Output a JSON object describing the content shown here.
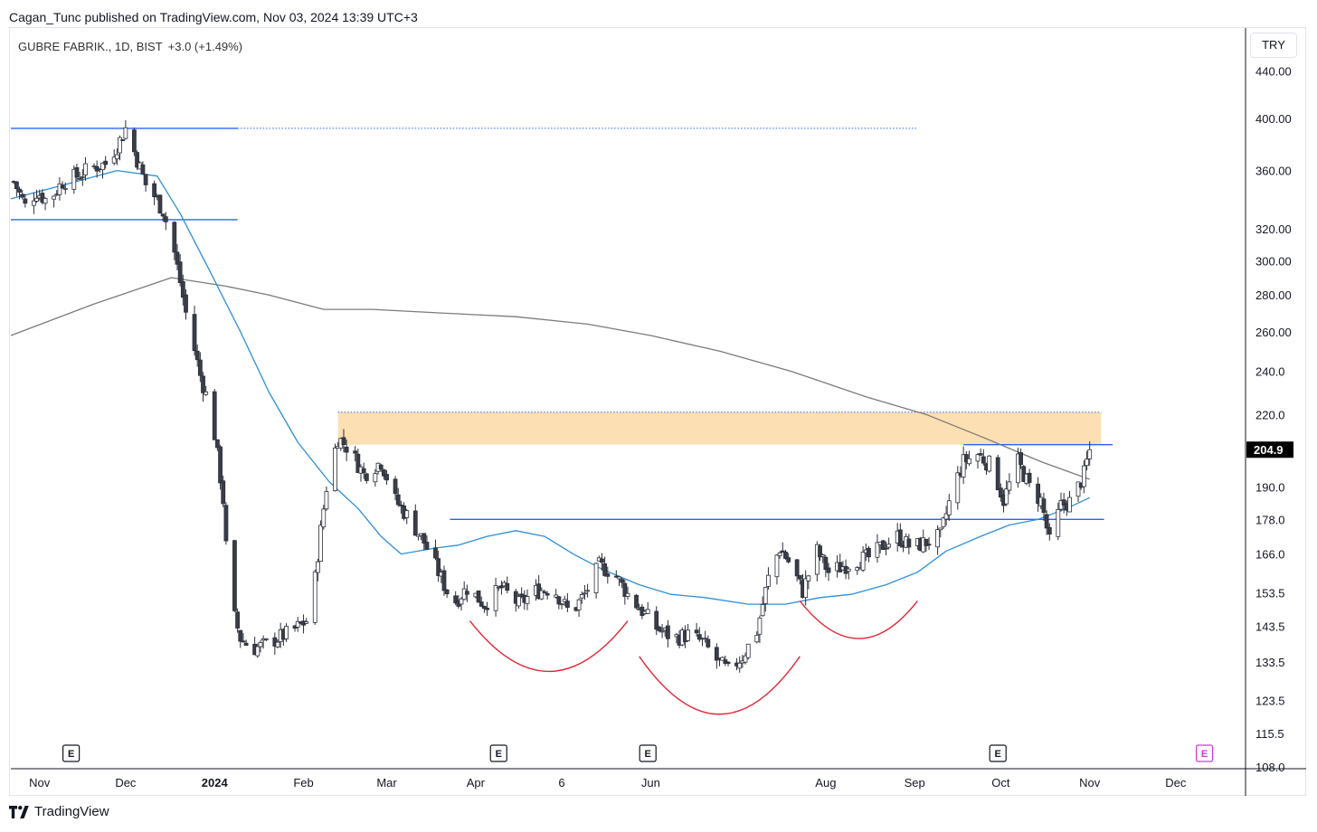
{
  "header": {
    "publish_line": "Cagan_Tunc published on TradingView.com, Nov 03, 2024 13:39 UTC+3"
  },
  "legend": {
    "symbol": "GUBRE FABRIK., 1D, BIST",
    "change": "+3.0 (+1.49%)"
  },
  "currency": "TRY",
  "brand": {
    "name": "TradingView"
  },
  "colors": {
    "up_candle_fill": "#ffffff",
    "down_candle_fill": "#3a3d46",
    "wick": "#2a2e39",
    "ma_fast": "#2f8fd8",
    "ma_slow": "#7b7b7b",
    "levels": "#2962ff",
    "resistance_zone": "#fbd9a4",
    "arcs": "#e32636",
    "last_price_bg": "#000000",
    "future_earnings": "#d633d6"
  },
  "chart_data": {
    "type": "candlestick",
    "symbol": "GUBRE FABRIK.",
    "interval": "1D",
    "exchange": "BIST",
    "last_price": 204.9,
    "last_price_label": "204.9",
    "scale": "log",
    "ylim": [
      108,
      480
    ],
    "y_ticks": [
      "440.00",
      "400.00",
      "360.00",
      "320.00",
      "300.00",
      "280.00",
      "260.00",
      "240.0",
      "220.0",
      "190.0",
      "178.0",
      "166.0",
      "153.5",
      "143.5",
      "133.5",
      "123.5",
      "115.5",
      "108.0"
    ],
    "x_ticks": [
      "Nov",
      "Dec",
      "2024",
      "Feb",
      "Mar",
      "Apr",
      "6",
      "Jun",
      "Aug",
      "Sep",
      "Oct",
      "Nov",
      "Dec"
    ],
    "x_range": [
      "2023-10-22",
      "2024-12-25"
    ],
    "price_anchors": [
      [
        "2023-10-23",
        352
      ],
      [
        "2023-10-27",
        335
      ],
      [
        "2023-10-31",
        345
      ],
      [
        "2023-11-04",
        338
      ],
      [
        "2023-11-09",
        352
      ],
      [
        "2023-11-14",
        356
      ],
      [
        "2023-11-19",
        362
      ],
      [
        "2023-11-24",
        365
      ],
      [
        "2023-11-28",
        378
      ],
      [
        "2023-12-01",
        392
      ],
      [
        "2023-12-05",
        368
      ],
      [
        "2023-12-08",
        350
      ],
      [
        "2023-12-11",
        342
      ],
      [
        "2023-12-14",
        332
      ],
      [
        "2023-12-18",
        305
      ],
      [
        "2023-12-22",
        270
      ],
      [
        "2023-12-27",
        238
      ],
      [
        "2023-12-31",
        220
      ],
      [
        "2024-01-04",
        185
      ],
      [
        "2024-01-06",
        152
      ],
      [
        "2024-01-10",
        140
      ],
      [
        "2024-01-14",
        137
      ],
      [
        "2024-01-18",
        138
      ],
      [
        "2024-01-23",
        140
      ],
      [
        "2024-01-28",
        142
      ],
      [
        "2024-02-02",
        145
      ],
      [
        "2024-02-05",
        158
      ],
      [
        "2024-02-09",
        190
      ],
      [
        "2024-02-13",
        210
      ],
      [
        "2024-02-17",
        205
      ],
      [
        "2024-02-22",
        195
      ],
      [
        "2024-02-28",
        200
      ],
      [
        "2024-03-04",
        185
      ],
      [
        "2024-03-09",
        178
      ],
      [
        "2024-03-14",
        170
      ],
      [
        "2024-03-19",
        160
      ],
      [
        "2024-03-24",
        150
      ],
      [
        "2024-03-29",
        155
      ],
      [
        "2024-04-04",
        150
      ],
      [
        "2024-04-10",
        155
      ],
      [
        "2024-04-16",
        150
      ],
      [
        "2024-04-22",
        154
      ],
      [
        "2024-04-28",
        155
      ],
      [
        "2024-05-04",
        147
      ],
      [
        "2024-05-09",
        153
      ],
      [
        "2024-05-14",
        162
      ],
      [
        "2024-05-19",
        160
      ],
      [
        "2024-05-24",
        153
      ],
      [
        "2024-05-29",
        148
      ],
      [
        "2024-06-03",
        143
      ],
      [
        "2024-06-09",
        140
      ],
      [
        "2024-06-14",
        141
      ],
      [
        "2024-06-19",
        139
      ],
      [
        "2024-06-24",
        134
      ],
      [
        "2024-06-28",
        131
      ],
      [
        "2024-07-03",
        135
      ],
      [
        "2024-07-08",
        142
      ],
      [
        "2024-07-12",
        158
      ],
      [
        "2024-07-16",
        168
      ],
      [
        "2024-07-20",
        162
      ],
      [
        "2024-07-24",
        154
      ],
      [
        "2024-07-29",
        167
      ],
      [
        "2024-08-02",
        160
      ],
      [
        "2024-08-07",
        162
      ],
      [
        "2024-08-12",
        164
      ],
      [
        "2024-08-17",
        165
      ],
      [
        "2024-08-21",
        169
      ],
      [
        "2024-08-26",
        172
      ],
      [
        "2024-08-31",
        168
      ],
      [
        "2024-09-05",
        170
      ],
      [
        "2024-09-10",
        172
      ],
      [
        "2024-09-14",
        188
      ],
      [
        "2024-09-18",
        200
      ],
      [
        "2024-09-23",
        203
      ],
      [
        "2024-09-28",
        198
      ],
      [
        "2024-10-02",
        185
      ],
      [
        "2024-10-07",
        200
      ],
      [
        "2024-10-11",
        190
      ],
      [
        "2024-10-15",
        185
      ],
      [
        "2024-10-18",
        170
      ],
      [
        "2024-10-22",
        183
      ],
      [
        "2024-10-26",
        185
      ],
      [
        "2024-10-30",
        195
      ],
      [
        "2024-11-01",
        204.9
      ]
    ],
    "ma_fast": [
      [
        "2023-10-22",
        340
      ],
      [
        "2023-11-10",
        350
      ],
      [
        "2023-11-28",
        360
      ],
      [
        "2023-12-05",
        358
      ],
      [
        "2023-12-12",
        356
      ],
      [
        "2023-12-20",
        330
      ],
      [
        "2023-12-30",
        295
      ],
      [
        "2024-01-10",
        260
      ],
      [
        "2024-01-20",
        230
      ],
      [
        "2024-01-30",
        208
      ],
      [
        "2024-02-10",
        192
      ],
      [
        "2024-02-20",
        182
      ],
      [
        "2024-02-28",
        172
      ],
      [
        "2024-03-06",
        166
      ],
      [
        "2024-03-18",
        168
      ],
      [
        "2024-03-26",
        169
      ],
      [
        "2024-04-05",
        172
      ],
      [
        "2024-04-15",
        174
      ],
      [
        "2024-04-25",
        172
      ],
      [
        "2024-05-05",
        166
      ],
      [
        "2024-05-15",
        161
      ],
      [
        "2024-05-28",
        156
      ],
      [
        "2024-06-08",
        153
      ],
      [
        "2024-06-20",
        152
      ],
      [
        "2024-07-05",
        150
      ],
      [
        "2024-07-18",
        150
      ],
      [
        "2024-07-30",
        152
      ],
      [
        "2024-08-10",
        153
      ],
      [
        "2024-08-22",
        156
      ],
      [
        "2024-09-02",
        160
      ],
      [
        "2024-09-12",
        167
      ],
      [
        "2024-09-24",
        172
      ],
      [
        "2024-10-04",
        176
      ],
      [
        "2024-10-14",
        178
      ],
      [
        "2024-10-24",
        182
      ],
      [
        "2024-11-01",
        186
      ]
    ],
    "ma_slow": [
      [
        "2023-10-22",
        258
      ],
      [
        "2023-11-20",
        275
      ],
      [
        "2023-12-17",
        290
      ],
      [
        "2024-01-05",
        285
      ],
      [
        "2024-01-20",
        280
      ],
      [
        "2024-02-08",
        272
      ],
      [
        "2024-02-25",
        272
      ],
      [
        "2024-03-20",
        270
      ],
      [
        "2024-04-15",
        268
      ],
      [
        "2024-05-10",
        264
      ],
      [
        "2024-06-01",
        258
      ],
      [
        "2024-06-25",
        250
      ],
      [
        "2024-07-20",
        240
      ],
      [
        "2024-08-15",
        228
      ],
      [
        "2024-09-05",
        220
      ],
      [
        "2024-09-25",
        210
      ],
      [
        "2024-10-15",
        200
      ],
      [
        "2024-11-01",
        193
      ]
    ],
    "horizontal_levels": [
      {
        "price": 392,
        "from": "2023-10-22",
        "to": "2024-01-09",
        "style": "solid"
      },
      {
        "price": 392,
        "from": "2024-01-09",
        "to": "2024-09-02",
        "style": "dotted"
      },
      {
        "price": 326,
        "from": "2023-10-22",
        "to": "2024-01-09",
        "style": "solid"
      },
      {
        "price": 178,
        "from": "2024-03-23",
        "to": "2024-11-06",
        "style": "solid"
      },
      {
        "price": 207,
        "from": "2024-09-18",
        "to": "2024-11-09",
        "style": "solid"
      },
      {
        "price": 221,
        "from": "2024-02-13",
        "to": "2024-11-05",
        "style": "dotted"
      }
    ],
    "resistance_zone": {
      "from": "2024-02-13",
      "to": "2024-11-05",
      "low": 207,
      "high": 221
    },
    "rounding_arcs": [
      {
        "from": "2024-03-30",
        "to": "2024-05-24",
        "depth": 0.32,
        "anchor": 145
      },
      {
        "from": "2024-05-28",
        "to": "2024-07-23",
        "depth": 0.36,
        "anchor": 135
      },
      {
        "from": "2024-07-23",
        "to": "2024-09-02",
        "depth": 0.32,
        "anchor": 151
      }
    ],
    "earnings": [
      {
        "date": "2023-11-12",
        "label": "E",
        "future": false
      },
      {
        "date": "2024-04-09",
        "label": "E",
        "future": false
      },
      {
        "date": "2024-05-31",
        "label": "E",
        "future": false
      },
      {
        "date": "2024-09-30",
        "label": "E",
        "future": false
      },
      {
        "date": "2024-12-11",
        "label": "E",
        "future": true
      }
    ],
    "title": "GUBRE FABRIK., 1D, BIST",
    "legend_position": "top-left",
    "grid": false
  }
}
